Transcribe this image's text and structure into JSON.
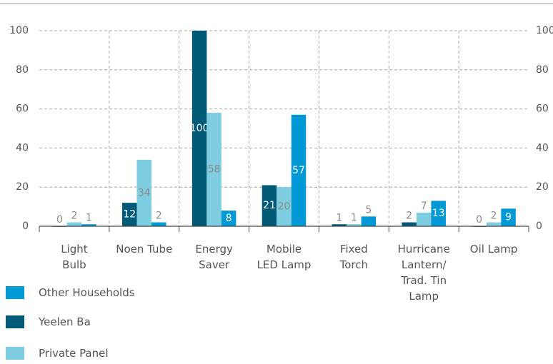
{
  "chart_data": {
    "type": "bar",
    "categories": [
      "Light\nBulb",
      "Noen Tube",
      "Energy\nSaver",
      "Mobile\nLED Lamp",
      "Fixed\nTorch",
      "Hurricane\nLantern/\nTrad. Tin\nLamp",
      "Oil Lamp"
    ],
    "series": [
      {
        "name": "Yeelen Ba",
        "color": "#005a78",
        "values": [
          0,
          12,
          100,
          21,
          1,
          2,
          0
        ]
      },
      {
        "name": "Private Panel",
        "color": "#7fcde0",
        "values": [
          2,
          34,
          58,
          20,
          1,
          7,
          2
        ]
      },
      {
        "name": "Other Households",
        "color": "#0099d6",
        "values": [
          1,
          2,
          8,
          57,
          5,
          13,
          9
        ]
      }
    ],
    "legend_order": [
      "Other Households",
      "Yeelen Ba",
      "Private Panel"
    ],
    "ylim": [
      0,
      100
    ],
    "yticks": [
      0,
      20,
      40,
      60,
      80,
      100
    ],
    "grid": true
  }
}
